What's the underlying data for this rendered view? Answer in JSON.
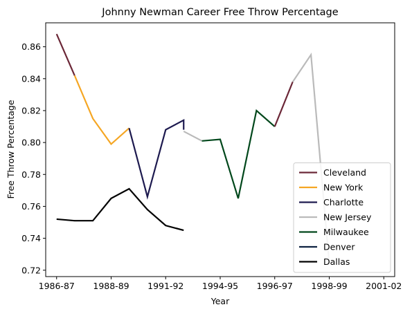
{
  "chart_data": {
    "type": "line",
    "title": "Johnny Newman Career Free Throw Percentage",
    "xlabel": "Year",
    "ylabel": "Free Throw Percentage",
    "x_ticks": [
      "1986-87",
      "1988-89",
      "1991-92",
      "1994-95",
      "1996-97",
      "1998-99",
      "2001-02"
    ],
    "x_tick_positions": [
      0,
      2,
      4,
      6,
      8,
      10,
      12
    ],
    "xlim": [
      -0.4,
      12.4
    ],
    "y_ticks": [
      0.72,
      0.74,
      0.76,
      0.78,
      0.8,
      0.82,
      0.84,
      0.86
    ],
    "ylim": [
      0.716,
      0.875
    ],
    "legend_position": "lower-right",
    "grid": false,
    "series": [
      {
        "name": "Cleveland",
        "color": "#6b2737",
        "points": [
          [
            0,
            0.868
          ],
          [
            0.66,
            0.842
          ]
        ]
      },
      {
        "name": "New York",
        "color": "#f5a623",
        "points": [
          [
            0.66,
            0.842
          ],
          [
            1.33,
            0.815
          ],
          [
            2,
            0.799
          ],
          [
            2.66,
            0.809
          ]
        ]
      },
      {
        "name": "Charlotte",
        "color": "#1d1a4f",
        "points": [
          [
            2.66,
            0.809
          ],
          [
            3.33,
            0.766
          ],
          [
            4,
            0.808
          ],
          [
            4.66,
            0.814
          ],
          [
            4.66,
            0.808
          ]
        ]
      },
      {
        "name": "New Jersey",
        "color": "#bababa",
        "points": [
          [
            4.66,
            0.807
          ],
          [
            5.33,
            0.801
          ]
        ]
      },
      {
        "name": "Milwaukee",
        "color": "#00471b",
        "points": [
          [
            5.33,
            0.801
          ],
          [
            6,
            0.802
          ],
          [
            6.66,
            0.765
          ],
          [
            7.33,
            0.82
          ],
          [
            8,
            0.81
          ]
        ]
      },
      {
        "name": "Cleveland",
        "color": "#6b2737",
        "points": [
          [
            8,
            0.81
          ],
          [
            8.66,
            0.838
          ]
        ]
      },
      {
        "name": "New Jersey",
        "color": "#bababa",
        "points": [
          [
            8.66,
            0.838
          ],
          [
            9.33,
            0.855
          ],
          [
            10,
            0.724
          ]
        ]
      },
      {
        "name": "Denver",
        "color": "#0e2240",
        "points": []
      },
      {
        "name": "Dallas",
        "color": "#000000",
        "points": [
          [
            0,
            0.752
          ],
          [
            0.66,
            0.751
          ],
          [
            1.33,
            0.751
          ],
          [
            2,
            0.765
          ],
          [
            2.66,
            0.771
          ],
          [
            3.33,
            0.758
          ],
          [
            4,
            0.748
          ],
          [
            4.66,
            0.745
          ]
        ]
      }
    ],
    "legend": [
      {
        "label": "Cleveland",
        "color": "#6b2737"
      },
      {
        "label": "New York",
        "color": "#f5a623"
      },
      {
        "label": "Charlotte",
        "color": "#1d1a4f"
      },
      {
        "label": "New Jersey",
        "color": "#bababa"
      },
      {
        "label": "Milwaukee",
        "color": "#00471b"
      },
      {
        "label": "Denver",
        "color": "#0e2240"
      },
      {
        "label": "Dallas",
        "color": "#000000"
      }
    ]
  }
}
